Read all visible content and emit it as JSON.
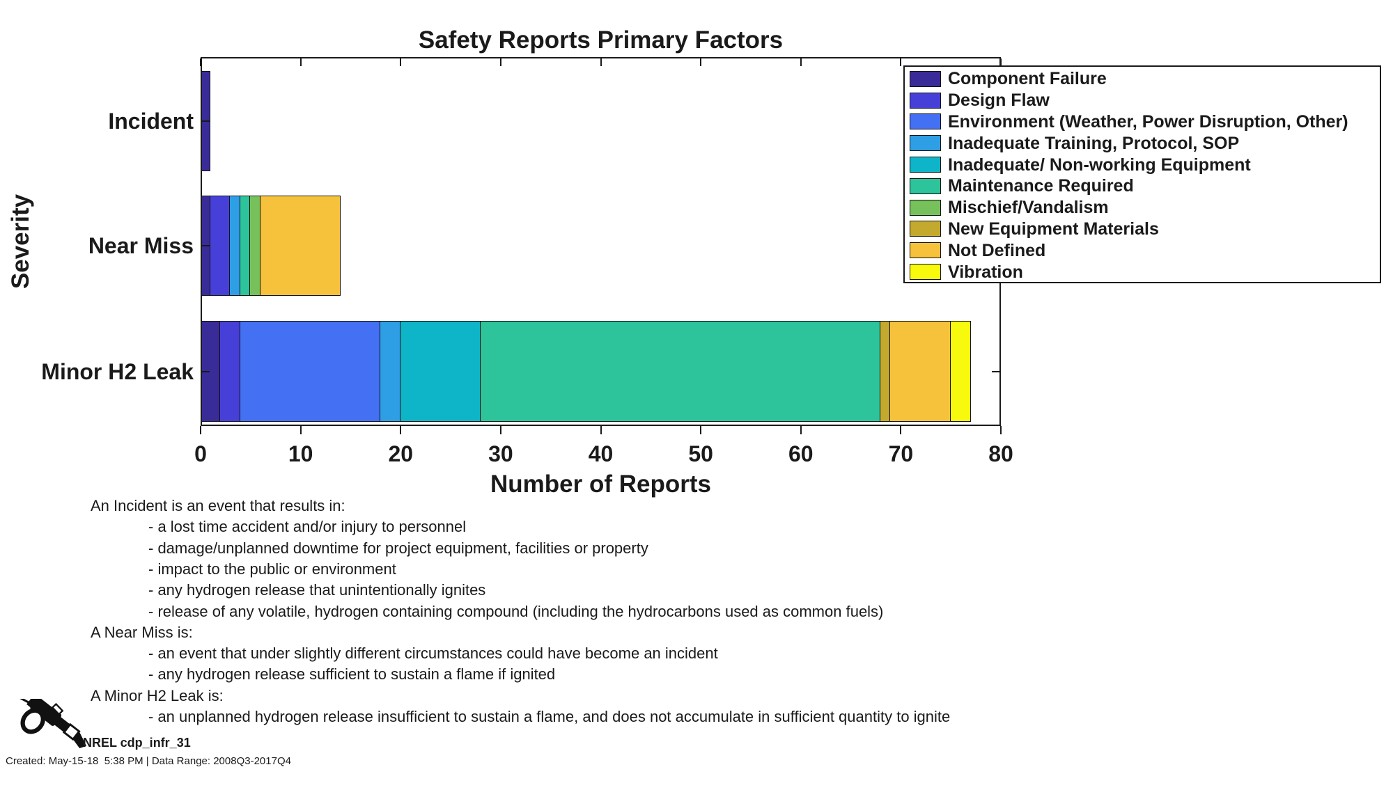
{
  "title": "Safety Reports Primary Factors",
  "axes": {
    "x_label": "Number of Reports",
    "y_label": "Severity",
    "x_ticks": [
      0,
      10,
      20,
      30,
      40,
      50,
      60,
      70,
      80
    ],
    "categories": [
      "Incident",
      "Near Miss",
      "Minor H2 Leak"
    ]
  },
  "chart_data": {
    "type": "bar",
    "orientation": "horizontal-stacked",
    "title": "Safety Reports Primary Factors",
    "xlabel": "Number of Reports",
    "ylabel": "Severity",
    "xlim": [
      0,
      80
    ],
    "x_ticks": [
      0,
      10,
      20,
      30,
      40,
      50,
      60,
      70,
      80
    ],
    "grid": false,
    "legend_position": "upper-right-inside",
    "categories": [
      "Incident",
      "Near Miss",
      "Minor H2 Leak"
    ],
    "series": [
      {
        "name": "Component Failure",
        "color": "#3A2C98",
        "values": [
          1,
          1,
          2
        ]
      },
      {
        "name": "Design Flaw",
        "color": "#4640D8",
        "values": [
          0,
          2,
          2
        ]
      },
      {
        "name": "Environment (Weather, Power Disruption, Other)",
        "color": "#4471F3",
        "values": [
          0,
          0,
          14
        ]
      },
      {
        "name": "Inadequate Training, Protocol, SOP",
        "color": "#2E9FE5",
        "values": [
          0,
          1,
          2
        ]
      },
      {
        "name": "Inadequate/ Non-working Equipment",
        "color": "#0EB5C9",
        "values": [
          0,
          0,
          8
        ]
      },
      {
        "name": "Maintenance Required",
        "color": "#2EC49B",
        "values": [
          0,
          1,
          40
        ]
      },
      {
        "name": "Mischief/Vandalism",
        "color": "#77C15D",
        "values": [
          0,
          1,
          0
        ]
      },
      {
        "name": "New Equipment Materials",
        "color": "#C3AA2F",
        "values": [
          0,
          0,
          1
        ]
      },
      {
        "name": "Not Defined",
        "color": "#F7C23B",
        "values": [
          0,
          8,
          6
        ]
      },
      {
        "name": "Vibration",
        "color": "#F8FA0D",
        "values": [
          0,
          0,
          2
        ]
      }
    ],
    "totals": [
      1,
      14,
      77
    ]
  },
  "annotations": {
    "lines": [
      {
        "text": "An Incident is an event that results in:",
        "indent": false
      },
      {
        "text": "- a lost time accident and/or injury to personnel",
        "indent": true
      },
      {
        "text": "- damage/unplanned downtime for project equipment, facilities or property",
        "indent": true
      },
      {
        "text": "- impact to the public or environment",
        "indent": true
      },
      {
        "text": "- any hydrogen release that unintentionally ignites",
        "indent": true
      },
      {
        "text": "- release of any volatile, hydrogen containing compound (including the hydrocarbons used as common fuels)",
        "indent": true
      },
      {
        "text": "A Near Miss is:",
        "indent": false
      },
      {
        "text": "- an event that under slightly different circumstances could have become an incident",
        "indent": true
      },
      {
        "text": "- any hydrogen release sufficient to sustain a flame if ignited",
        "indent": true
      },
      {
        "text": "A Minor H2 Leak is:",
        "indent": false
      },
      {
        "text": "- an unplanned hydrogen release insufficient to sustain a flame, and does not accumulate in sufficient quantity to ignite",
        "indent": true
      }
    ]
  },
  "footer": {
    "logo_icon": "gas-pump-nozzle-icon",
    "dataset_label": "NREL cdp_infr_31",
    "created_line": "Created: May-15-18  5:38 PM | Data Range: 2008Q3-2017Q4"
  },
  "colors": {
    "background": "#FFFFFF",
    "axis_text": "#1A1A1A",
    "axis_line": "#1A1A1A",
    "bar_edge": "#111111"
  }
}
